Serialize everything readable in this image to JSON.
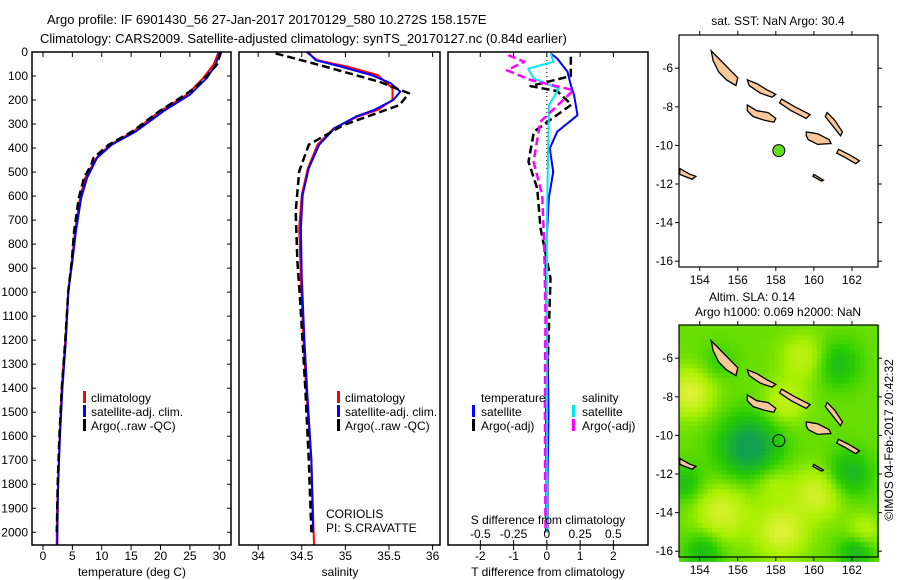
{
  "title": {
    "line1": "Argo profile: IF 6901430_56 27-Jan-2017 20170129_580 10.272S 158.157E",
    "line2": "Climatology: CARS2009. Satellite-adjusted climatology: synTS_20170127.nc (0.84d earlier)"
  },
  "watermark": "©IMOS 04-Feb-2017 20:42:32",
  "chart_data": [
    {
      "type": "line",
      "id": "temperature",
      "xlabel": "temperature (deg C)",
      "ylabel": "depth",
      "xlim": [
        -1.87,
        32
      ],
      "ylim": [
        2053,
        0
      ],
      "xticks": [
        "0",
        "5",
        "10",
        "15",
        "20",
        "25",
        "30"
      ],
      "yticks": [
        "0",
        "100",
        "200",
        "300",
        "400",
        "500",
        "600",
        "700",
        "800",
        "900",
        "1000",
        "1100",
        "1200",
        "1300",
        "1400",
        "1500",
        "1600",
        "1700",
        "1800",
        "1900",
        "2000"
      ],
      "legend": [
        "climatology",
        "satellite-adj. clim.",
        "Argo(..raw -QC)"
      ],
      "series": [
        {
          "name": "climatology",
          "color": "#ff0000",
          "dashed": false,
          "points": [
            [
              0,
              29.9
            ],
            [
              53,
              29.0
            ],
            [
              108,
              27.3
            ],
            [
              178,
              24.5
            ],
            [
              247,
              19.9
            ],
            [
              331,
              15.4
            ],
            [
              386,
              11.4
            ],
            [
              441,
              9.1
            ],
            [
              524,
              7.2
            ],
            [
              608,
              6.3
            ],
            [
              747,
              5.45
            ],
            [
              872,
              4.9
            ],
            [
              997,
              4.3
            ],
            [
              1200,
              3.8
            ],
            [
              1400,
              3.2
            ],
            [
              1600,
              2.85
            ],
            [
              1800,
              2.6
            ],
            [
              1900,
              2.4
            ],
            [
              2053,
              2.33
            ]
          ]
        },
        {
          "name": "satellite-adj. clim.",
          "color": "#0000ff",
          "dashed": false,
          "points": [
            [
              0,
              30.1
            ],
            [
              53,
              29.4
            ],
            [
              108,
              27.9
            ],
            [
              178,
              25.0
            ],
            [
              247,
              20.5
            ],
            [
              331,
              15.8
            ],
            [
              386,
              11.7
            ],
            [
              441,
              9.2
            ],
            [
              524,
              7.5
            ],
            [
              608,
              6.5
            ],
            [
              747,
              5.6
            ],
            [
              872,
              5.0
            ],
            [
              997,
              4.3
            ],
            [
              1200,
              3.9
            ],
            [
              1400,
              3.3
            ],
            [
              1500,
              3.1
            ],
            [
              1600,
              2.9
            ],
            [
              1800,
              2.55
            ],
            [
              2053,
              2.44
            ]
          ]
        },
        {
          "name": "Argo(..raw -QC)",
          "color": "#000000",
          "dashed": true,
          "points": [
            [
              0,
              30.3
            ],
            [
              53,
              29.6
            ],
            [
              108,
              27.6
            ],
            [
              150,
              25.8
            ],
            [
              178,
              24.2
            ],
            [
              247,
              19.8
            ],
            [
              331,
              15.2
            ],
            [
              386,
              11.2
            ],
            [
              441,
              8.6
            ],
            [
              470,
              8.2
            ],
            [
              524,
              7.0
            ],
            [
              608,
              6.1
            ],
            [
              747,
              5.3
            ],
            [
              872,
              4.9
            ],
            [
              997,
              4.3
            ],
            [
              1200,
              3.8
            ],
            [
              1400,
              3.2
            ],
            [
              1600,
              2.8
            ],
            [
              1800,
              2.5
            ],
            [
              2000,
              2.35
            ]
          ]
        }
      ]
    },
    {
      "type": "line",
      "id": "salinity",
      "xlabel": "salinity",
      "xlim": [
        33.78,
        36.085
      ],
      "ylim": [
        2053,
        0
      ],
      "xticks": [
        "34",
        "34.5",
        "35",
        "35.5",
        "36"
      ],
      "legend": [
        "climatology",
        "satellite-adj. clim.",
        "Argo(..raw -QC)"
      ],
      "annotation": [
        "CORIOLIS",
        "PI: S.CRAVATTE"
      ],
      "series": [
        {
          "name": "climatology",
          "color": "#ff0000",
          "dashed": false,
          "points": [
            [
              0,
              34.55
            ],
            [
              34,
              34.68
            ],
            [
              61,
              35.02
            ],
            [
              96,
              35.37
            ],
            [
              151,
              35.54
            ],
            [
              200,
              35.54
            ],
            [
              241,
              35.37
            ],
            [
              269,
              35.14
            ],
            [
              317,
              34.87
            ],
            [
              386,
              34.68
            ],
            [
              484,
              34.57
            ],
            [
              594,
              34.5
            ],
            [
              733,
              34.47
            ],
            [
              942,
              34.49
            ],
            [
              1200,
              34.52
            ],
            [
              1400,
              34.55
            ],
            [
              1700,
              34.61
            ],
            [
              2053,
              34.64
            ]
          ]
        },
        {
          "name": "satellite-adj. clim.",
          "color": "#0000ff",
          "dashed": false,
          "points": [
            [
              0,
              34.57
            ],
            [
              34,
              34.66
            ],
            [
              61,
              34.95
            ],
            [
              96,
              35.3
            ],
            [
              130,
              35.52
            ],
            [
              165,
              35.63
            ],
            [
              200,
              35.55
            ],
            [
              241,
              35.33
            ],
            [
              269,
              35.12
            ],
            [
              317,
              34.88
            ],
            [
              386,
              34.7
            ],
            [
              484,
              34.58
            ],
            [
              594,
              34.51
            ],
            [
              733,
              34.49
            ],
            [
              942,
              34.5
            ],
            [
              1200,
              34.53
            ],
            [
              1400,
              34.56
            ],
            [
              1700,
              34.61
            ],
            [
              2000,
              34.63
            ]
          ]
        },
        {
          "name": "Argo(..raw -QC)",
          "color": "#000000",
          "dashed": true,
          "points": [
            [
              6,
              34.2
            ],
            [
              55,
              34.71
            ],
            [
              124,
              35.39
            ],
            [
              172,
              35.73
            ],
            [
              221,
              35.62
            ],
            [
              304,
              34.98
            ],
            [
              386,
              34.58
            ],
            [
              497,
              34.47
            ],
            [
              664,
              34.43
            ],
            [
              872,
              34.45
            ],
            [
              1025,
              34.48
            ],
            [
              1400,
              34.54
            ],
            [
              1700,
              34.58
            ],
            [
              2000,
              34.61
            ]
          ]
        }
      ]
    },
    {
      "type": "line",
      "id": "difference",
      "xlabel": "T difference from climatology",
      "x2label": "S difference from climatology",
      "xlim": [
        -2.97,
        3.04
      ],
      "x2lim": [
        -0.743,
        0.76
      ],
      "ylim": [
        2053,
        0
      ],
      "xticks": [
        "-2",
        "-1",
        "0",
        "1",
        "2"
      ],
      "x2ticks": [
        "-0.5",
        "-0.25",
        "0",
        "0.25",
        "0.5"
      ],
      "legend": {
        "temperature_title": "temperature",
        "temperature_items": [
          "satellite",
          "Argo(-adj)"
        ],
        "salinity_title": "salinity",
        "salinity_items": [
          "satellite",
          "Argo(-adj)"
        ]
      },
      "series": [
        {
          "name": "T satellite",
          "axis": "T",
          "color": "#0000ff",
          "dashed": false,
          "points": [
            [
              6,
              0.11
            ],
            [
              27,
              0.31
            ],
            [
              82,
              0.62
            ],
            [
              138,
              0.72
            ],
            [
              180,
              0.82
            ],
            [
              263,
              0.92
            ],
            [
              332,
              0.31
            ],
            [
              401,
              0.09
            ],
            [
              499,
              0.19
            ],
            [
              610,
              0.06
            ],
            [
              873,
              -0.04
            ],
            [
              1200,
              0.02
            ],
            [
              1500,
              0.05
            ],
            [
              1800,
              0.02
            ],
            [
              2000,
              0.02
            ]
          ]
        },
        {
          "name": "T Argo(-adj)",
          "axis": "T",
          "color": "#000000",
          "dashed": true,
          "points": [
            [
              20,
              0.72
            ],
            [
              100,
              0.72
            ],
            [
              142,
              -0.49
            ],
            [
              163,
              0.31
            ],
            [
              219,
              0.74
            ],
            [
              332,
              -0.39
            ],
            [
              457,
              -0.55
            ],
            [
              568,
              -0.29
            ],
            [
              733,
              -0.19
            ],
            [
              942,
              0.11
            ],
            [
              1200,
              0.05
            ],
            [
              1500,
              -0.02
            ],
            [
              1800,
              0.0
            ],
            [
              2000,
              -0.02
            ]
          ]
        },
        {
          "name": "S satellite",
          "axis": "S",
          "color": "#00e8f0",
          "dashed": false,
          "points": [
            [
              6,
              0.028
            ],
            [
              41,
              0.05
            ],
            [
              69,
              -0.14
            ],
            [
              110,
              -0.1
            ],
            [
              152,
              0.09
            ],
            [
              221,
              0.015
            ],
            [
              400,
              0.01
            ],
            [
              700,
              0.0
            ],
            [
              1200,
              0.0
            ],
            [
              2000,
              0.0
            ]
          ]
        },
        {
          "name": "S Argo(-adj)",
          "axis": "S",
          "color": "#ff00ff",
          "dashed": true,
          "points": [
            [
              13,
              -0.29
            ],
            [
              41,
              -0.17
            ],
            [
              76,
              -0.3
            ],
            [
              117,
              -0.12
            ],
            [
              159,
              0.2
            ],
            [
              291,
              -0.05
            ],
            [
              457,
              -0.1
            ],
            [
              596,
              -0.035
            ],
            [
              804,
              -0.02
            ],
            [
              1100,
              -0.01
            ],
            [
              1500,
              -0.015
            ],
            [
              2000,
              -0.01
            ]
          ]
        }
      ]
    },
    {
      "type": "map",
      "id": "sst-map",
      "title": "sat. SST: NaN Argo: 30.4",
      "xlim": [
        152.91,
        163.37
      ],
      "ylim": [
        -4.28,
        -16.3
      ],
      "xticks": [
        "154",
        "156",
        "158",
        "160",
        "162"
      ],
      "yticks": [
        "-6",
        "-8",
        "-10",
        "-12",
        "-14",
        "-16"
      ],
      "argo_position": {
        "lon": 158.157,
        "lat": -10.272,
        "color": "#66dd22"
      }
    },
    {
      "type": "heatmap",
      "id": "sla-map",
      "title_line1": "Altim. SLA: 0.14",
      "title_line2": "Argo h1000: 0.069 h2000: NaN",
      "xlim": [
        152.91,
        163.37
      ],
      "ylim": [
        -4.28,
        -16.3
      ],
      "xticks": [
        "154",
        "156",
        "158",
        "160",
        "162"
      ],
      "yticks": [
        "-6",
        "-8",
        "-10",
        "-12",
        "-14",
        "-16"
      ],
      "argo_position": {
        "lon": 158.157,
        "lat": -10.272
      },
      "colors": [
        "#10a050",
        "#28cc00",
        "#a8f000",
        "#e8f040"
      ]
    }
  ],
  "land_color": "#f8c898",
  "land": [
    [
      [
        154.6,
        -5.1
      ],
      [
        155.0,
        -5.5
      ],
      [
        155.5,
        -6.0
      ],
      [
        156.0,
        -6.5
      ],
      [
        155.9,
        -6.9
      ],
      [
        155.4,
        -6.6
      ],
      [
        155.0,
        -6.2
      ],
      [
        154.7,
        -5.6
      ]
    ],
    [
      [
        156.5,
        -6.6
      ],
      [
        157.0,
        -6.8
      ],
      [
        157.5,
        -7.1
      ],
      [
        158.0,
        -7.35
      ],
      [
        157.8,
        -7.5
      ],
      [
        157.2,
        -7.3
      ],
      [
        156.6,
        -6.9
      ]
    ],
    [
      [
        158.3,
        -7.6
      ],
      [
        159.0,
        -8.0
      ],
      [
        159.8,
        -8.4
      ],
      [
        159.6,
        -8.6
      ],
      [
        158.8,
        -8.2
      ],
      [
        158.2,
        -7.8
      ]
    ],
    [
      [
        156.5,
        -7.9
      ],
      [
        157.0,
        -8.2
      ],
      [
        157.6,
        -8.3
      ],
      [
        158.0,
        -8.6
      ],
      [
        157.9,
        -8.8
      ],
      [
        157.4,
        -8.7
      ],
      [
        156.8,
        -8.5
      ],
      [
        156.5,
        -8.2
      ]
    ],
    [
      [
        160.7,
        -8.3
      ],
      [
        161.1,
        -8.7
      ],
      [
        161.5,
        -9.3
      ],
      [
        161.4,
        -9.5
      ],
      [
        161.0,
        -9.0
      ],
      [
        160.6,
        -8.5
      ]
    ],
    [
      [
        159.6,
        -9.3
      ],
      [
        160.2,
        -9.4
      ],
      [
        160.8,
        -9.7
      ],
      [
        160.9,
        -9.9
      ],
      [
        160.2,
        -9.95
      ],
      [
        159.7,
        -9.7
      ],
      [
        159.6,
        -9.5
      ]
    ],
    [
      [
        161.3,
        -10.2
      ],
      [
        161.9,
        -10.5
      ],
      [
        162.4,
        -10.8
      ],
      [
        162.2,
        -10.95
      ],
      [
        161.6,
        -10.6
      ],
      [
        161.2,
        -10.4
      ]
    ],
    [
      [
        160.0,
        -11.5
      ],
      [
        160.5,
        -11.8
      ],
      [
        160.4,
        -11.85
      ],
      [
        159.95,
        -11.6
      ]
    ],
    [
      [
        152.95,
        -11.2
      ],
      [
        153.5,
        -11.5
      ],
      [
        153.8,
        -11.6
      ],
      [
        153.6,
        -11.75
      ],
      [
        152.95,
        -11.5
      ]
    ]
  ]
}
